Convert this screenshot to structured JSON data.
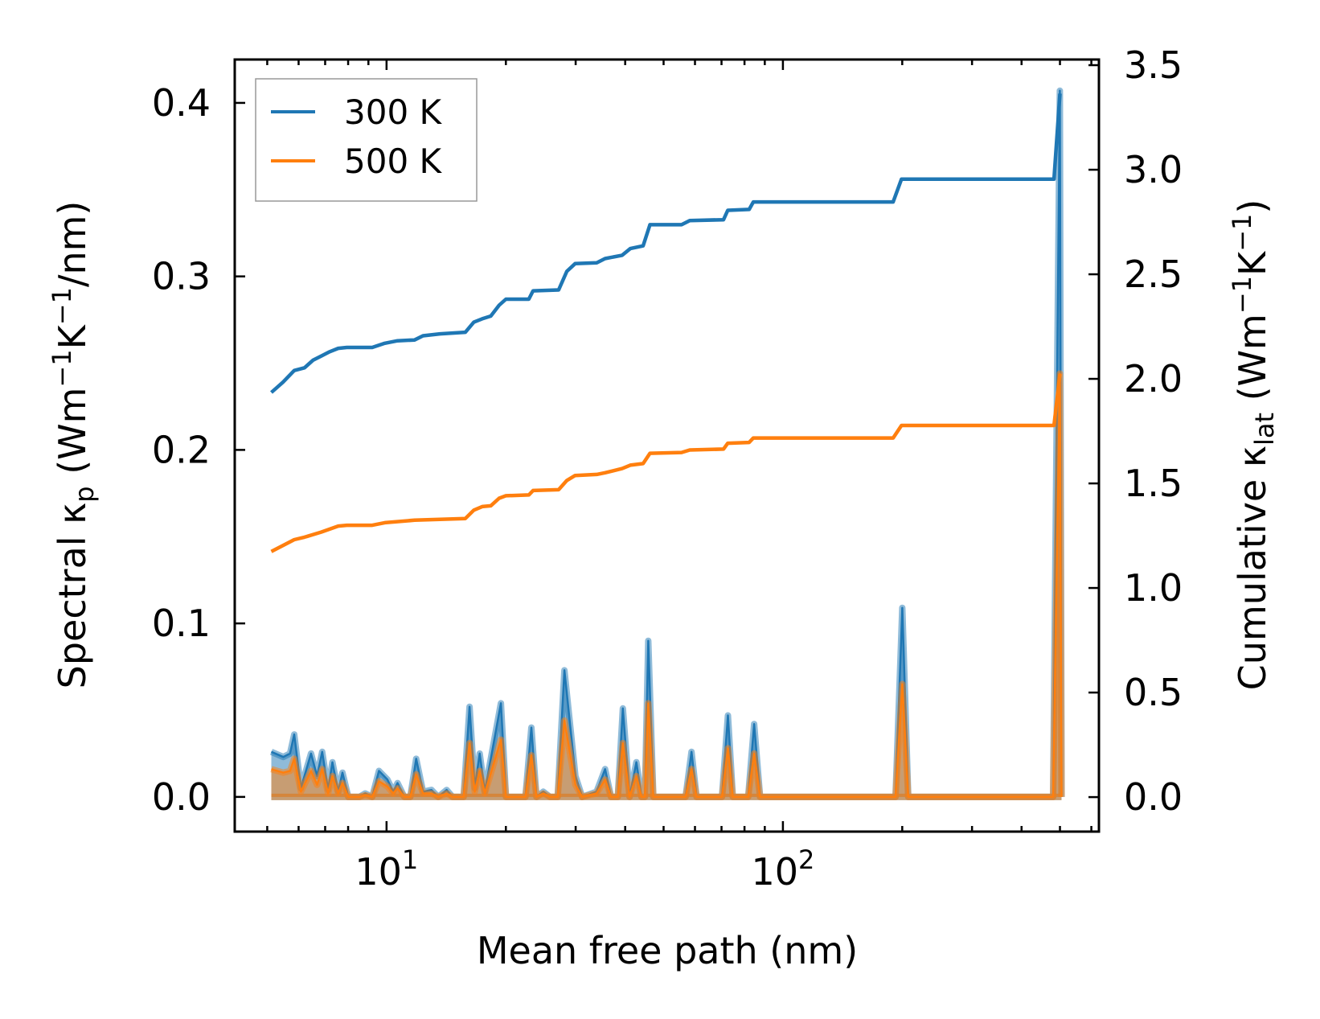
{
  "chart_data": {
    "type": "line",
    "xscale": "log",
    "xlim": [
      4.14,
      627
    ],
    "ylim_left": [
      -0.02,
      0.425
    ],
    "ylim_right": [
      -0.165,
      3.527
    ],
    "xlabel": "Mean free path (nm)",
    "ylabel_left": {
      "a": "Spectral κ",
      "sub": "p",
      "b": " (Wm",
      "sup1": "−1",
      "c": "K",
      "sup2": "−1",
      "d": "/nm)"
    },
    "ylabel_right": {
      "a": "Cumulative κ",
      "sub": "lat",
      "b": " (Wm",
      "sup1": "−1",
      "c": "K",
      "sup2": "−1",
      "d": ")"
    },
    "x_ticks": [
      {
        "value": 10,
        "base": "10",
        "exp": "1"
      },
      {
        "value": 100,
        "base": "10",
        "exp": "2"
      }
    ],
    "y_left_ticks": [
      {
        "value": 0.0,
        "label": "0.0"
      },
      {
        "value": 0.1,
        "label": "0.1"
      },
      {
        "value": 0.2,
        "label": "0.2"
      },
      {
        "value": 0.3,
        "label": "0.3"
      },
      {
        "value": 0.4,
        "label": "0.4"
      }
    ],
    "y_right_ticks": [
      {
        "value": 0.0,
        "label": "0.0"
      },
      {
        "value": 0.5,
        "label": "0.5"
      },
      {
        "value": 1.0,
        "label": "1.0"
      },
      {
        "value": 1.5,
        "label": "1.5"
      },
      {
        "value": 2.0,
        "label": "2.0"
      },
      {
        "value": 2.5,
        "label": "2.5"
      },
      {
        "value": 3.0,
        "label": "3.0"
      },
      {
        "value": 3.5,
        "label": "3.5"
      }
    ],
    "legend": {
      "placement": "upper-left",
      "entries": [
        {
          "label": "300 K",
          "color": "#1f77b4"
        },
        {
          "label": "500 K",
          "color": "#ff7f0e"
        }
      ]
    },
    "spectral": {
      "axis": "left",
      "x": [
        5.12,
        5.49,
        5.71,
        5.85,
        6.08,
        6.45,
        6.68,
        6.88,
        7.12,
        7.3,
        7.55,
        7.74,
        8.01,
        8.54,
        8.84,
        9.2,
        9.57,
        10.05,
        10.4,
        10.66,
        11.09,
        11.48,
        11.88,
        12.36,
        12.98,
        13.5,
        14.18,
        14.68,
        15.65,
        16.2,
        16.69,
        17.18,
        17.7,
        19.43,
        20.01,
        22.41,
        23.2,
        23.89,
        24.85,
        25.85,
        27.02,
        28.1,
        29.96,
        31.16,
        33.88,
        35.59,
        36.84,
        38.32,
        39.47,
        41.05,
        42.69,
        43.98,
        44.85,
        45.74,
        47.11,
        56.8,
        58.79,
        60.56,
        70.2,
        72.66,
        74.77,
        81.72,
        84.6,
        87.58,
        192.4,
        200.1,
        207.1,
        480.4,
        499.6,
        504.6
      ],
      "series": [
        {
          "name": "300 K",
          "color": "#1f77b4",
          "values": [
            0.026,
            0.023,
            0.025,
            0.036,
            0.005,
            0.025,
            0.012,
            0.026,
            0.004,
            0.02,
            0.003,
            0.014,
            0.0,
            0.0,
            0.002,
            0.0,
            0.015,
            0.01,
            0.003,
            0.008,
            0.0,
            0.0,
            0.022,
            0.003,
            0.004,
            0.0,
            0.004,
            0.0,
            0.0,
            0.052,
            0.005,
            0.025,
            0.003,
            0.054,
            0.0,
            0.0,
            0.04,
            0.0,
            0.003,
            0.0,
            0.0,
            0.073,
            0.012,
            0.0,
            0.003,
            0.016,
            0.0,
            0.0,
            0.051,
            0.0,
            0.02,
            0.0,
            0.0,
            0.09,
            0.0,
            0.0,
            0.026,
            0.0,
            0.0,
            0.047,
            0.0,
            0.0,
            0.042,
            0.0,
            0.0,
            0.109,
            0.0,
            0.0,
            0.407,
            0.0
          ]
        },
        {
          "name": "500 K",
          "color": "#ff7f0e",
          "values": [
            0.016,
            0.014,
            0.015,
            0.022,
            0.003,
            0.015,
            0.007,
            0.016,
            0.002,
            0.012,
            0.002,
            0.008,
            0.0,
            0.0,
            0.001,
            0.0,
            0.009,
            0.006,
            0.002,
            0.005,
            0.0,
            0.0,
            0.013,
            0.002,
            0.002,
            0.0,
            0.002,
            0.0,
            0.0,
            0.031,
            0.003,
            0.015,
            0.002,
            0.033,
            0.0,
            0.0,
            0.024,
            0.0,
            0.002,
            0.0,
            0.0,
            0.044,
            0.007,
            0.0,
            0.002,
            0.01,
            0.0,
            0.0,
            0.031,
            0.0,
            0.012,
            0.0,
            0.0,
            0.054,
            0.0,
            0.0,
            0.016,
            0.0,
            0.0,
            0.028,
            0.0,
            0.0,
            0.025,
            0.0,
            0.0,
            0.065,
            0.0,
            0.0,
            0.244,
            0.0
          ]
        }
      ]
    },
    "cumulative": {
      "axis": "right",
      "series": [
        {
          "name": "300 K",
          "color": "#1f77b4",
          "x": [
            5.12,
            5.48,
            5.85,
            6.21,
            6.52,
            6.84,
            7.19,
            7.55,
            7.94,
            9.2,
            9.9,
            10.66,
            11.77,
            12.36,
            13.64,
            15.81,
            16.6,
            17.43,
            18.32,
            19.23,
            20.0,
            22.85,
            23.42,
            27.17,
            28.5,
            29.9,
            33.9,
            35.6,
            39.3,
            41.2,
            44.4,
            46.2,
            55.5,
            58.2,
            70.8,
            72.6,
            82.2,
            84.2,
            189.7,
            199.1,
            483,
            500
          ],
          "values": [
            1.935,
            1.984,
            2.04,
            2.053,
            2.089,
            2.109,
            2.13,
            2.146,
            2.15,
            2.15,
            2.17,
            2.182,
            2.186,
            2.206,
            2.215,
            2.223,
            2.271,
            2.287,
            2.3,
            2.352,
            2.381,
            2.381,
            2.421,
            2.425,
            2.514,
            2.551,
            2.555,
            2.575,
            2.591,
            2.623,
            2.636,
            2.737,
            2.737,
            2.757,
            2.761,
            2.806,
            2.81,
            2.846,
            2.846,
            2.955,
            2.955,
            3.364
          ]
        },
        {
          "name": "500 K",
          "color": "#ff7f0e",
          "x": [
            5.12,
            5.85,
            6.21,
            6.84,
            7.55,
            7.94,
            9.2,
            9.9,
            11.77,
            13.64,
            15.81,
            16.6,
            17.43,
            18.32,
            19.23,
            20.0,
            22.85,
            23.42,
            27.17,
            28.5,
            29.9,
            33.9,
            35.6,
            39.3,
            41.2,
            44.4,
            46.2,
            55.5,
            58.2,
            70.8,
            72.6,
            82.2,
            84.2,
            189.7,
            199.1,
            483,
            500
          ],
          "values": [
            1.174,
            1.231,
            1.243,
            1.267,
            1.296,
            1.3,
            1.3,
            1.312,
            1.324,
            1.328,
            1.332,
            1.372,
            1.389,
            1.393,
            1.429,
            1.441,
            1.445,
            1.466,
            1.47,
            1.514,
            1.538,
            1.543,
            1.551,
            1.571,
            1.587,
            1.595,
            1.644,
            1.648,
            1.66,
            1.664,
            1.692,
            1.696,
            1.717,
            1.717,
            1.777,
            1.777,
            2.024
          ]
        }
      ]
    }
  }
}
